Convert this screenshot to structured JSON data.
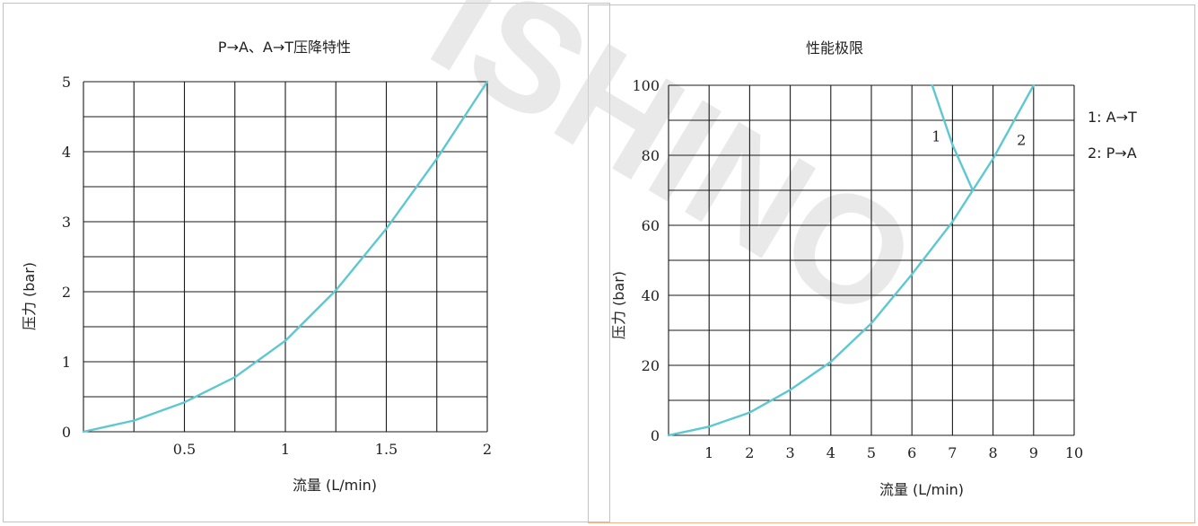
{
  "watermark": "ISHINO",
  "chart_data": [
    {
      "type": "line",
      "title": "P→A、A→T压降特性",
      "xlabel": "流量 (L/min)",
      "ylabel": "压力 (bar)",
      "xlim": [
        0,
        2
      ],
      "ylim": [
        0,
        5
      ],
      "xticks": [
        "0.5",
        "1",
        "1.5",
        "2"
      ],
      "yticks": [
        "0",
        "1",
        "2",
        "3",
        "4",
        "5"
      ],
      "grid": true,
      "series": [
        {
          "x": [
            0,
            0.25,
            0.5,
            0.75,
            1.0,
            1.25,
            1.5,
            1.75,
            2.0
          ],
          "y": [
            0,
            0.16,
            0.42,
            0.78,
            1.3,
            2.02,
            2.9,
            3.9,
            5.0
          ],
          "color": "#5ec8d0"
        }
      ]
    },
    {
      "type": "line",
      "title": "性能极限",
      "xlabel": "流量 (L/min)",
      "ylabel": "压力 (bar)",
      "xlim": [
        0,
        10
      ],
      "ylim": [
        0,
        100
      ],
      "xticks": [
        "1",
        "2",
        "3",
        "4",
        "5",
        "6",
        "7",
        "8",
        "9",
        "10"
      ],
      "yticks": [
        "0",
        "20",
        "40",
        "60",
        "80",
        "100"
      ],
      "grid": true,
      "legend": [
        "1: A→T",
        "2: P→A"
      ],
      "legend_position": "right",
      "series": [
        {
          "name": "1",
          "x": [
            6.5,
            7.0,
            7.5
          ],
          "y": [
            100,
            83,
            70
          ],
          "color": "#5ec8d0"
        },
        {
          "name": "2",
          "x": [
            0,
            1,
            2,
            3,
            4,
            5,
            6,
            7,
            8,
            9
          ],
          "y": [
            0,
            2.5,
            6.5,
            13,
            21,
            32,
            46,
            61,
            79,
            100
          ],
          "color": "#5ec8d0"
        }
      ]
    }
  ]
}
